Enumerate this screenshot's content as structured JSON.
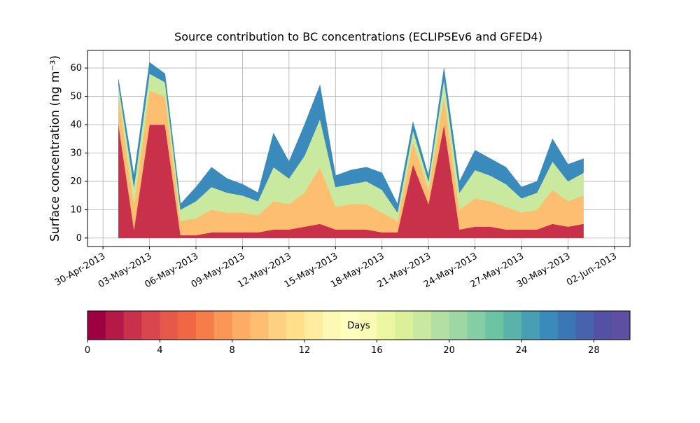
{
  "chart_data": {
    "type": "stacked_area",
    "title": "Source contribution to BC concentrations (ECLIPSEv6 and GFED4)",
    "y_label": "Surface concentration (ng m⁻³)",
    "x": [
      "2013-05-01",
      "2013-05-02",
      "2013-05-03",
      "2013-05-04",
      "2013-05-05",
      "2013-05-06",
      "2013-05-07",
      "2013-05-08",
      "2013-05-09",
      "2013-05-10",
      "2013-05-11",
      "2013-05-12",
      "2013-05-13",
      "2013-05-14",
      "2013-05-15",
      "2013-05-16",
      "2013-05-17",
      "2013-05-18",
      "2013-05-19",
      "2013-05-20",
      "2013-05-21",
      "2013-05-22",
      "2013-05-23",
      "2013-05-24",
      "2013-05-25",
      "2013-05-26",
      "2013-05-27",
      "2013-05-28",
      "2013-05-29",
      "2013-05-30",
      "2013-05-31"
    ],
    "series": [
      {
        "color": "#c9314b",
        "values": [
          40,
          3,
          40,
          40,
          1,
          1,
          2,
          2,
          2,
          2,
          3,
          3,
          4,
          5,
          3,
          3,
          3,
          2,
          2,
          26,
          12,
          40,
          3,
          4,
          4,
          3,
          3,
          3,
          5,
          4,
          5
        ]
      },
      {
        "color": "#fdbe6f",
        "values": [
          10,
          9,
          12,
          10,
          5,
          6,
          8,
          7,
          7,
          6,
          10,
          9,
          12,
          20,
          8,
          9,
          9,
          7,
          4,
          8,
          5,
          10,
          7,
          10,
          9,
          8,
          6,
          7,
          12,
          9,
          10
        ]
      },
      {
        "color": "#c9e99e",
        "values": [
          4,
          6,
          6,
          5,
          4,
          6,
          8,
          7,
          6,
          5,
          12,
          9,
          13,
          17,
          7,
          7,
          8,
          8,
          3,
          4,
          3,
          6,
          6,
          10,
          9,
          8,
          5,
          6,
          10,
          7,
          8
        ]
      },
      {
        "color": "#3a8bbb",
        "values": [
          2,
          4,
          4,
          3,
          2,
          5,
          7,
          5,
          4,
          3,
          12,
          6,
          11,
          12,
          4,
          5,
          5,
          6,
          3,
          3,
          2,
          4,
          4,
          7,
          6,
          6,
          4,
          4,
          8,
          6,
          5
        ]
      }
    ],
    "xlim": [
      "2013-04-29",
      "2013-06-03"
    ],
    "xticks": [
      {
        "value": "2013-04-30",
        "label": "30-Apr-2013"
      },
      {
        "value": "2013-05-03",
        "label": "03-May-2013"
      },
      {
        "value": "2013-05-06",
        "label": "06-May-2013"
      },
      {
        "value": "2013-05-09",
        "label": "09-May-2013"
      },
      {
        "value": "2013-05-12",
        "label": "12-May-2013"
      },
      {
        "value": "2013-05-15",
        "label": "15-May-2013"
      },
      {
        "value": "2013-05-18",
        "label": "18-May-2013"
      },
      {
        "value": "2013-05-21",
        "label": "21-May-2013"
      },
      {
        "value": "2013-05-24",
        "label": "24-May-2013"
      },
      {
        "value": "2013-05-27",
        "label": "27-May-2013"
      },
      {
        "value": "2013-05-30",
        "label": "30-May-2013"
      },
      {
        "value": "2013-06-02",
        "label": "02-Jun-2013"
      }
    ],
    "ylim": [
      -3,
      66.2
    ],
    "yticks": [
      0,
      10,
      20,
      30,
      40,
      50,
      60
    ],
    "grid": true,
    "colorbar": {
      "label": "Days",
      "lim": [
        0,
        30
      ],
      "ticks": [
        0,
        4,
        8,
        12,
        16,
        20,
        24,
        28
      ],
      "colors": [
        "#9e0142",
        "#b41947",
        "#c9314b",
        "#da464d",
        "#e65848",
        "#f06744",
        "#f67d4a",
        "#fa9656",
        "#fdac63",
        "#fdbe6f",
        "#fed081",
        "#fee08b",
        "#feec9f",
        "#fff8b4",
        "#fffebe",
        "#f7fcb2",
        "#ecf7a2",
        "#dcf09a",
        "#c9e99e",
        "#b3e0a2",
        "#9dd7a4",
        "#85cda5",
        "#6dc4a4",
        "#5ab3ab",
        "#489fb3",
        "#3a8bbb",
        "#3b77b4",
        "#4863ac",
        "#5451a5",
        "#5e4fa2"
      ]
    }
  }
}
